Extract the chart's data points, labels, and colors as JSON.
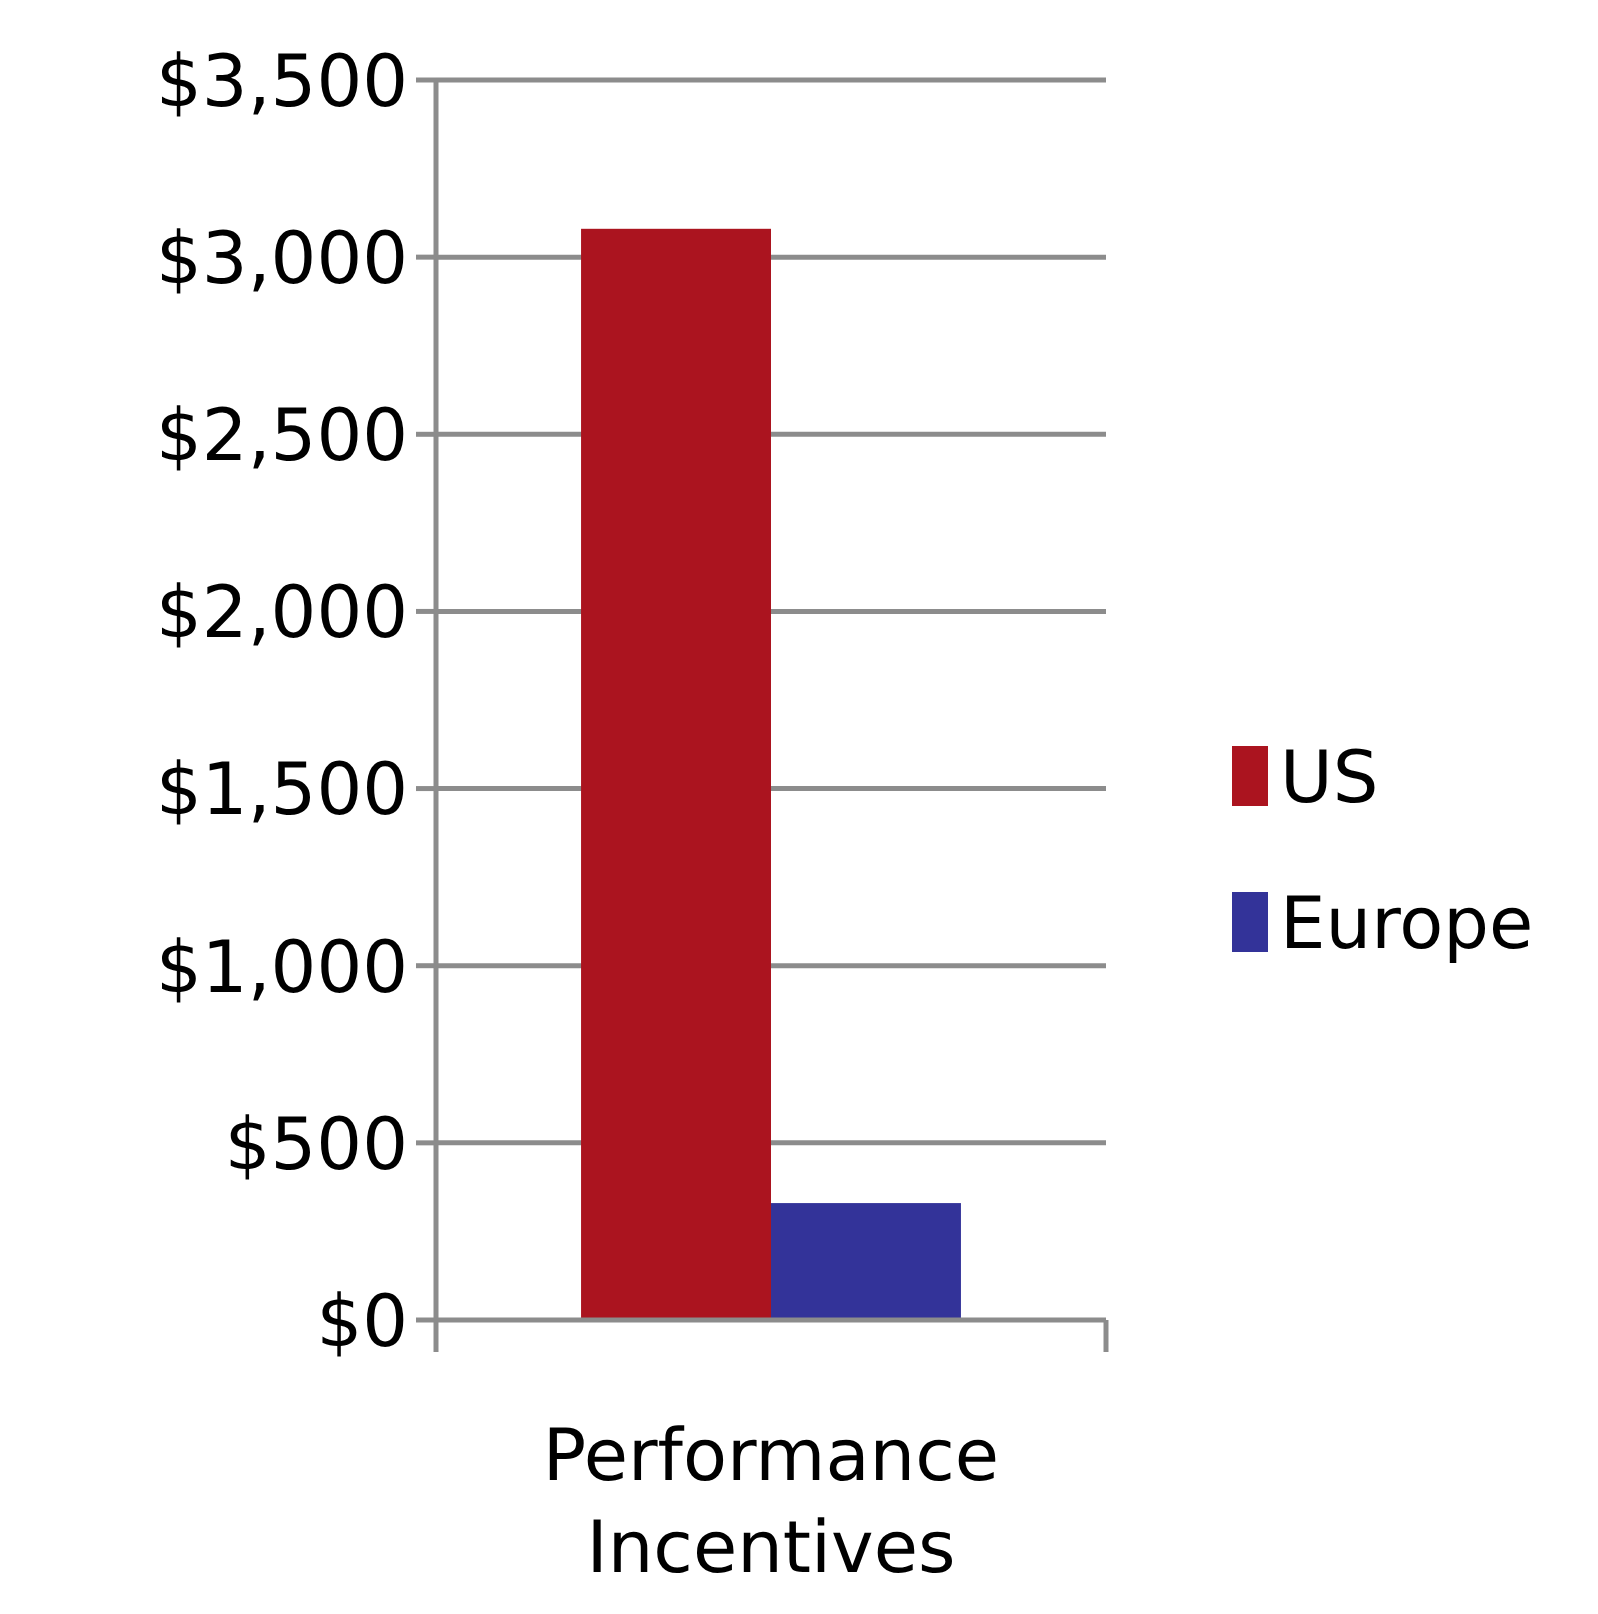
{
  "chart_data": {
    "type": "bar",
    "categories": [
      "Performance Incentives"
    ],
    "series": [
      {
        "name": "US",
        "color": "#ab141f",
        "values": [
          3080
        ]
      },
      {
        "name": "Europe",
        "color": "#333399",
        "values": [
          330
        ]
      }
    ],
    "ylim": [
      0,
      3500
    ],
    "yticks": [
      {
        "value": 0,
        "label": "$0"
      },
      {
        "value": 500,
        "label": "$500"
      },
      {
        "value": 1000,
        "label": "$1,000"
      },
      {
        "value": 1500,
        "label": "$1,500"
      },
      {
        "value": 2000,
        "label": "$2,000"
      },
      {
        "value": 2500,
        "label": "$2,500"
      },
      {
        "value": 3000,
        "label": "$3,000"
      },
      {
        "value": 3500,
        "label": "$3,500"
      }
    ],
    "grid": "y",
    "legend": "right"
  }
}
